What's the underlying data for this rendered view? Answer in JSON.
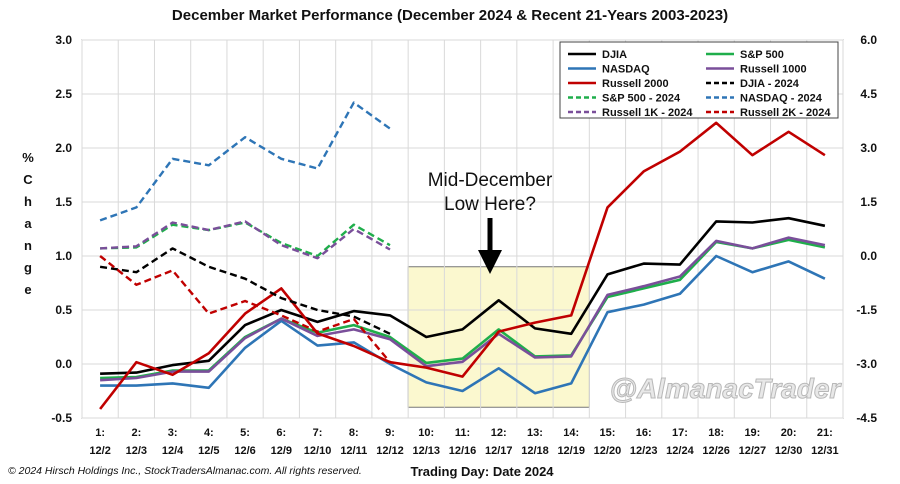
{
  "chart_data": {
    "type": "line",
    "title": "December Market Performance (December 2024 & Recent 21-Years 2003-2023)",
    "xlabel": "Trading Day: Date 2024",
    "ylabel": "% Change",
    "ylim": [
      -0.5,
      3.0
    ],
    "y2lim": [
      -4.5,
      6.0
    ],
    "y_ticks": [
      "3.0",
      "2.5",
      "2.0",
      "1.5",
      "1.0",
      "0.5",
      "0.0",
      "-0.5"
    ],
    "y2_ticks": [
      "6.0",
      "4.5",
      "3.0",
      "1.5",
      "0.0",
      "-1.5",
      "-3.0",
      "-4.5"
    ],
    "grid": true,
    "legend_position": "top-right",
    "x_day_labels": [
      "1:",
      "2:",
      "3:",
      "4:",
      "5:",
      "6:",
      "7:",
      "8:",
      "9:",
      "10:",
      "11:",
      "12:",
      "13:",
      "14:",
      "15:",
      "16:",
      "17:",
      "18:",
      "19:",
      "20:",
      "21:"
    ],
    "x_date_labels": [
      "12/2",
      "12/3",
      "12/4",
      "12/5",
      "12/6",
      "12/9",
      "12/10",
      "12/11",
      "12/12",
      "12/13",
      "12/16",
      "12/17",
      "12/18",
      "12/19",
      "12/20",
      "12/23",
      "12/24",
      "12/26",
      "12/27",
      "12/30",
      "12/31"
    ],
    "series": [
      {
        "name": "DJIA",
        "color": "#000000",
        "dash": false,
        "axis": "left",
        "values": [
          -0.09,
          -0.08,
          -0.01,
          0.03,
          0.36,
          0.5,
          0.39,
          0.49,
          0.45,
          0.25,
          0.32,
          0.59,
          0.33,
          0.28,
          0.83,
          0.93,
          0.92,
          1.32,
          1.31,
          1.35,
          1.28
        ]
      },
      {
        "name": "S&P 500",
        "color": "#1fae4b",
        "dash": false,
        "axis": "left",
        "values": [
          -0.13,
          -0.12,
          -0.06,
          -0.06,
          0.25,
          0.42,
          0.29,
          0.36,
          0.25,
          0.01,
          0.05,
          0.32,
          0.07,
          0.08,
          0.62,
          0.7,
          0.78,
          1.13,
          1.07,
          1.15,
          1.08
        ]
      },
      {
        "name": "NASDAQ",
        "color": "#2e75b6",
        "dash": false,
        "axis": "left",
        "values": [
          -0.2,
          -0.2,
          -0.18,
          -0.22,
          0.15,
          0.4,
          0.17,
          0.2,
          0.0,
          -0.17,
          -0.25,
          -0.04,
          -0.27,
          -0.18,
          0.48,
          0.55,
          0.65,
          1.0,
          0.85,
          0.95,
          0.79
        ]
      },
      {
        "name": "Russell 1000",
        "color": "#7a4f9a",
        "dash": false,
        "axis": "left",
        "values": [
          -0.15,
          -0.13,
          -0.07,
          -0.07,
          0.24,
          0.42,
          0.26,
          0.32,
          0.23,
          -0.02,
          0.02,
          0.28,
          0.06,
          0.07,
          0.64,
          0.72,
          0.81,
          1.14,
          1.07,
          1.17,
          1.1
        ]
      },
      {
        "name": "Russell 2000",
        "color": "#c00000",
        "dash": false,
        "axis": "right",
        "values": [
          -4.25,
          -2.95,
          -3.3,
          -2.7,
          -1.6,
          -0.9,
          -2.15,
          -2.5,
          -2.95,
          -3.1,
          -3.35,
          -2.1,
          -1.85,
          -1.65,
          1.35,
          2.35,
          2.9,
          3.7,
          2.8,
          3.45,
          2.8
        ]
      },
      {
        "name": "DJIA - 2024",
        "color": "#000000",
        "dash": true,
        "axis": "left",
        "values": [
          0.9,
          0.85,
          1.07,
          0.9,
          0.79,
          0.61,
          0.5,
          0.44,
          0.28
        ]
      },
      {
        "name": "S&P 500 - 2024",
        "color": "#1fae4b",
        "dash": true,
        "axis": "left",
        "values": [
          1.07,
          1.08,
          1.29,
          1.24,
          1.31,
          1.12,
          1.0,
          1.29,
          1.1
        ]
      },
      {
        "name": "NASDAQ - 2024",
        "color": "#2e75b6",
        "dash": true,
        "axis": "left",
        "values": [
          1.33,
          1.45,
          1.9,
          1.84,
          2.1,
          1.9,
          1.81,
          2.42,
          2.18
        ]
      },
      {
        "name": "Russell 1K - 2024",
        "color": "#7a4f9a",
        "dash": true,
        "axis": "left",
        "values": [
          1.07,
          1.09,
          1.31,
          1.24,
          1.32,
          1.1,
          0.98,
          1.25,
          1.06
        ]
      },
      {
        "name": "Russell 2K - 2024",
        "color": "#c00000",
        "dash": true,
        "axis": "right",
        "values": [
          0.0,
          -0.8,
          -0.4,
          -1.6,
          -1.25,
          -1.65,
          -2.1,
          -1.75,
          -2.95
        ]
      }
    ],
    "legend_order": [
      "DJIA",
      "S&P 500",
      "NASDAQ",
      "Russell 1000",
      "Russell 2000",
      "DJIA - 2024",
      "S&P 500 - 2024",
      "NASDAQ - 2024",
      "Russell 1K - 2024",
      "Russell 2K - 2024"
    ],
    "annotation": {
      "text_line1": "Mid-December",
      "text_line2": "Low Here?",
      "highlight_from_day": "10:",
      "highlight_to_day": "14:",
      "highlight_ymin": -0.4,
      "highlight_ymax": 0.9,
      "highlight_color": "#fbf8cf"
    },
    "watermark": "@AlmanacTrader",
    "copyright": "© 2024 Hirsch Holdings Inc., StockTradersAlmanac.com. All rights reserved."
  }
}
